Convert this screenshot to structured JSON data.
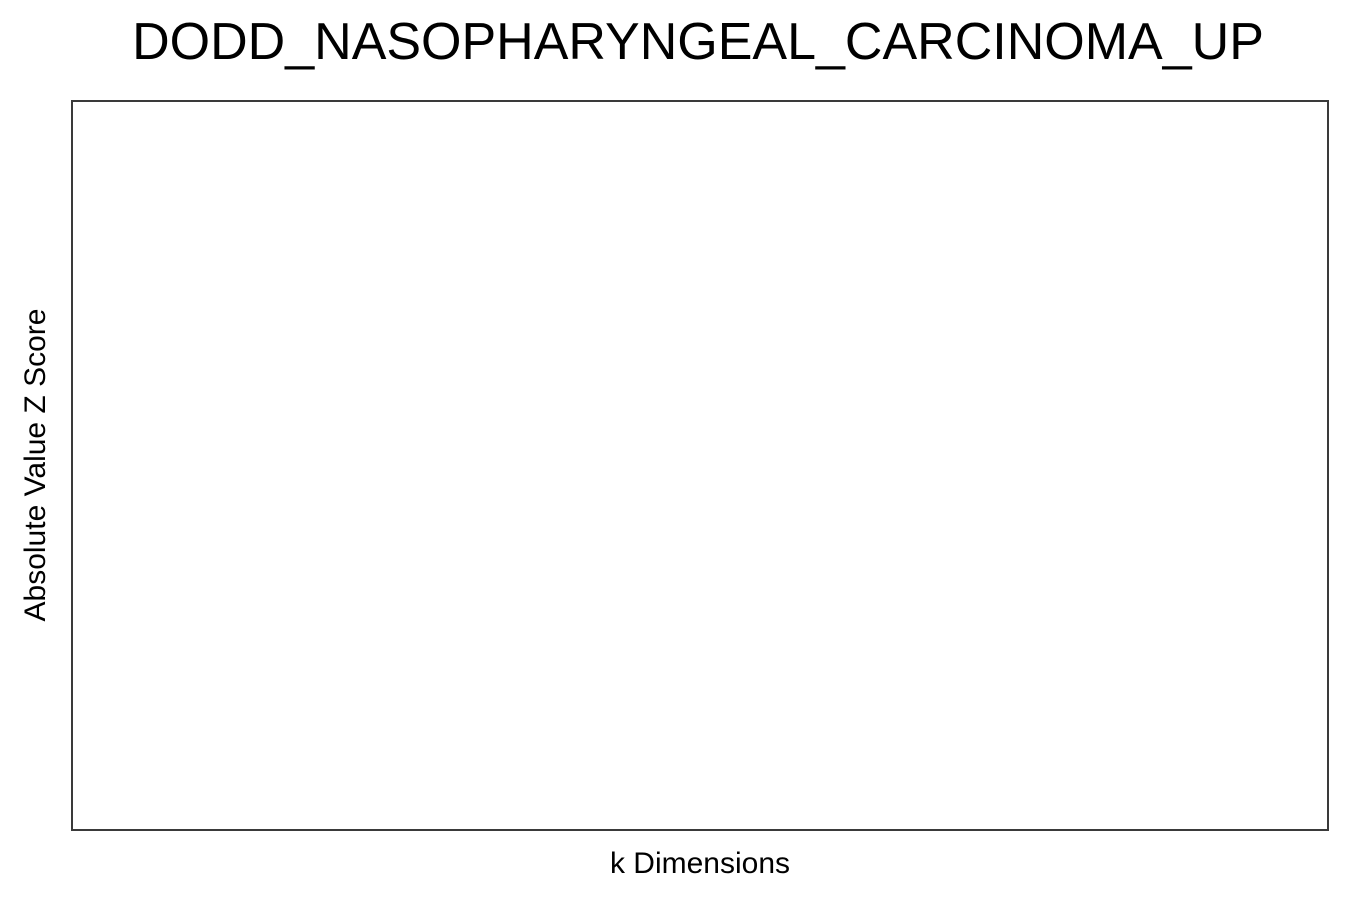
{
  "chart_data": {
    "type": "scatter",
    "title": "DODD_NASOPHARYNGEAL_CARCINOMA_UP",
    "xlabel": "k Dimensions",
    "ylabel": "Absolute Value Z Score",
    "series": [],
    "x_ticks": [],
    "y_ticks": [],
    "grid": false,
    "legend": "none"
  }
}
